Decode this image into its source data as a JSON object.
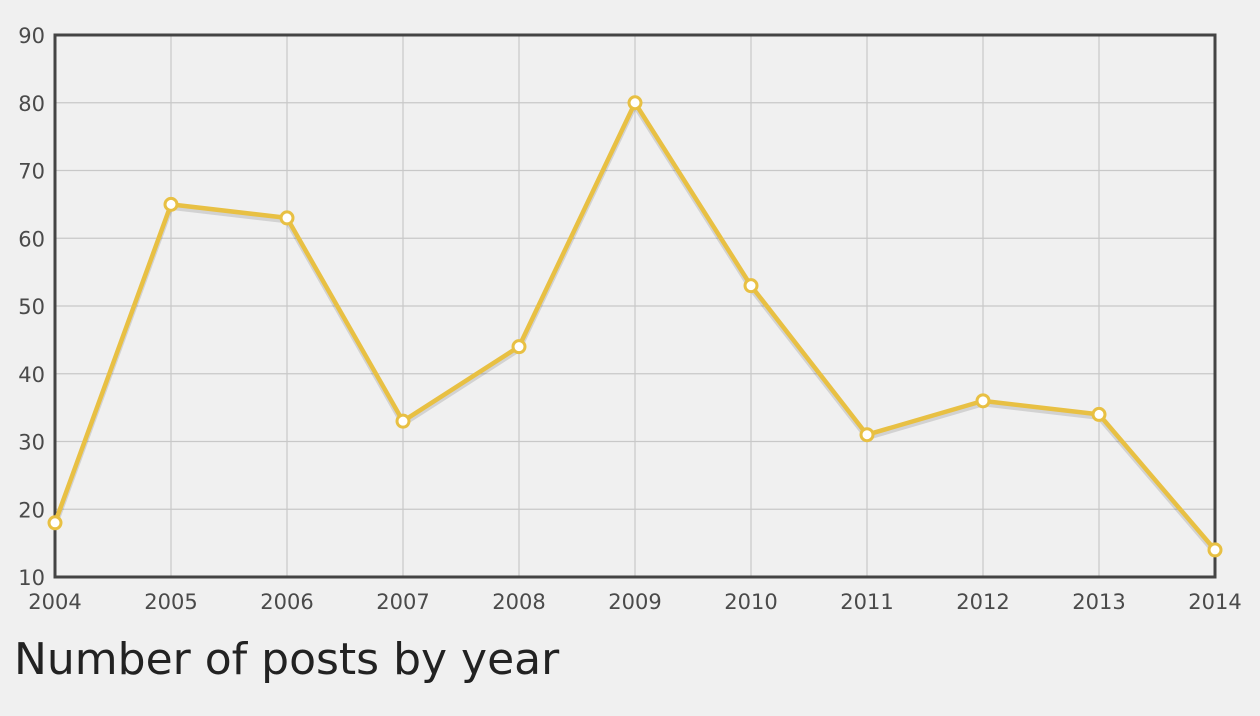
{
  "chart_data": {
    "type": "line",
    "title": "Number of posts by year",
    "categories": [
      "2004",
      "2005",
      "2006",
      "2007",
      "2008",
      "2009",
      "2010",
      "2011",
      "2012",
      "2013",
      "2014"
    ],
    "series": [
      {
        "values": [
          18,
          65,
          63,
          33,
          44,
          80,
          53,
          31,
          36,
          34,
          14
        ]
      }
    ],
    "yticks": [
      10,
      20,
      30,
      40,
      50,
      60,
      70,
      80,
      90
    ],
    "ylim": [
      10,
      90
    ],
    "grid": true,
    "legend": "none",
    "colors": {
      "line": "#e8c043",
      "marker_fill": "#ffffff",
      "grid": "#c8c8c8",
      "frame": "#444444",
      "background": "#f0f0f0",
      "text": "#4a4a4a"
    }
  }
}
